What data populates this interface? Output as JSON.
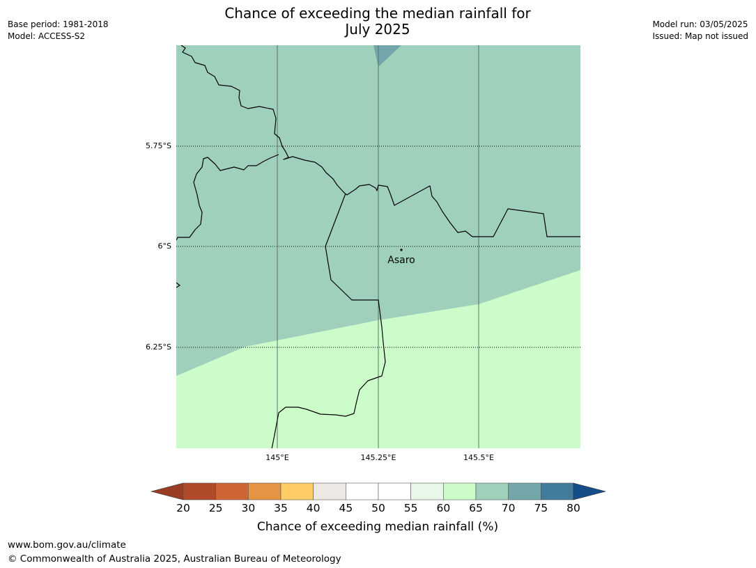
{
  "title": {
    "line1": "Chance of exceeding the median rainfall for",
    "line2": "July 2025"
  },
  "meta_left": {
    "base_period": "Base period: 1981-2018",
    "model": "Model: ACCESS-S2"
  },
  "meta_right": {
    "model_run": "Model run: 03/05/2025",
    "issued": "Issued: Map not issued"
  },
  "map": {
    "lat_labels": [
      "5.75°S",
      "6°S",
      "6.25°S"
    ],
    "lon_labels": [
      "145°E",
      "145.25°E",
      "145.5°E"
    ],
    "place": {
      "name": "Asaro"
    },
    "region_colors": {
      "band_65_70": "#9fd0bb",
      "band_60_65": "#ccfcca",
      "band_70_75": "#72a6aa"
    }
  },
  "colorbar": {
    "label": "Chance of exceeding median rainfall (%)",
    "ticks": [
      "20",
      "25",
      "30",
      "35",
      "40",
      "45",
      "50",
      "55",
      "60",
      "65",
      "70",
      "75",
      "80"
    ],
    "under_color": "#9a3b24",
    "over_color": "#144d88",
    "colors": [
      "#b04a28",
      "#cf6435",
      "#e39544",
      "#ffcc66",
      "#ece8e3",
      "#ffffff",
      "#ffffff",
      "#e9f7e8",
      "#ccfcca",
      "#9fd0bb",
      "#72a6aa",
      "#437b9b"
    ]
  },
  "footer": {
    "url": "www.bom.gov.au/climate",
    "copyright": "© Commonwealth of Australia 2025, Australian Bureau of Meteorology"
  }
}
